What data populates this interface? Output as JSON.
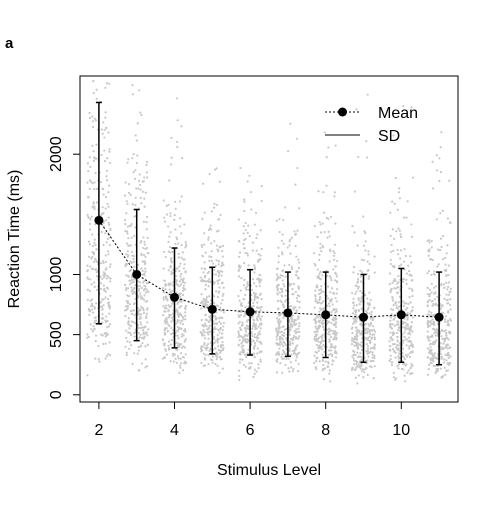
{
  "chart_data": {
    "type": "scatter",
    "panel_label": "a",
    "title": "",
    "xlabel": "Stimulus Level",
    "ylabel": "Reaction Time (ms)",
    "xlim": [
      1.5,
      11.5
    ],
    "ylim": [
      -60,
      2650
    ],
    "x_ticks": [
      2,
      4,
      6,
      8,
      10
    ],
    "y_ticks": [
      0,
      500,
      1000,
      2000
    ],
    "legend": {
      "position": "top-right",
      "entries": [
        {
          "label": "Mean",
          "marker": "filled-circle",
          "line": "dotted"
        },
        {
          "label": "SD",
          "marker": "none",
          "line": "solid"
        }
      ]
    },
    "series": [
      {
        "name": "Mean",
        "x": [
          2,
          3,
          4,
          5,
          6,
          7,
          8,
          9,
          10,
          11
        ],
        "values": [
          1450,
          1000,
          810,
          710,
          690,
          680,
          665,
          645,
          665,
          645
        ]
      },
      {
        "name": "SD",
        "x": [
          2,
          3,
          4,
          5,
          6,
          7,
          8,
          9,
          10,
          11
        ],
        "lower": [
          590,
          450,
          390,
          340,
          330,
          320,
          310,
          270,
          270,
          250
        ],
        "upper": [
          2430,
          1540,
          1220,
          1060,
          1040,
          1020,
          1020,
          1000,
          1050,
          1020
        ]
      }
    ],
    "raw_points": {
      "color": "#c8c8c8",
      "per_level_count": 320
    },
    "colors": {
      "points": "#c8c8c8",
      "mean": "#000000",
      "axis": "#000000"
    }
  }
}
